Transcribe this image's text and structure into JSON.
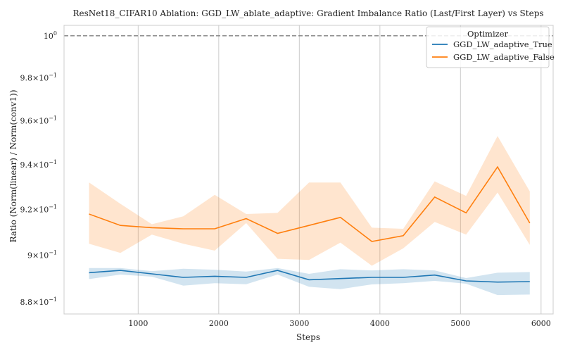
{
  "chart_data": {
    "type": "line",
    "title": "ResNet18_CIFAR10 Ablation: GGD_LW_ablate_adaptive: Gradient Imbalance Ratio (Last/First Layer) vs Steps",
    "xlabel": "Steps",
    "ylabel": "Ratio (Norm(linear) / Norm(conv1))",
    "yscale": "log",
    "xlim": [
      80,
      6150
    ],
    "ylim": [
      0.875,
      1.005
    ],
    "x_ticks": [
      1000,
      2000,
      3000,
      4000,
      5000,
      6000
    ],
    "x_tick_labels": [
      "1000",
      "2000",
      "3000",
      "4000",
      "5000",
      "6000"
    ],
    "y_ticks": [
      {
        "value": 0.88,
        "mantissa": "8.8",
        "base": "10",
        "exp": "−1",
        "minor": true
      },
      {
        "value": 0.9,
        "mantissa": "9",
        "base": "10",
        "exp": "−1",
        "minor": true
      },
      {
        "value": 0.92,
        "mantissa": "9.2",
        "base": "10",
        "exp": "−1",
        "minor": true
      },
      {
        "value": 0.94,
        "mantissa": "9.4",
        "base": "10",
        "exp": "−1",
        "minor": true
      },
      {
        "value": 0.96,
        "mantissa": "9.6",
        "base": "10",
        "exp": "−1",
        "minor": true
      },
      {
        "value": 0.98,
        "mantissa": "9.8",
        "base": "10",
        "exp": "−1",
        "minor": true
      },
      {
        "value": 1.0,
        "mantissa": "",
        "base": "10",
        "exp": "0",
        "minor": false
      }
    ],
    "grid": "x",
    "reference_line": {
      "y": 1.0,
      "style": "dashed",
      "color": "#808080"
    },
    "legend": {
      "title": "Optimizer",
      "placement": "top-right"
    },
    "x": [
      390,
      780,
      1170,
      1560,
      1950,
      2340,
      2730,
      3120,
      3510,
      3900,
      4290,
      4680,
      5070,
      5460,
      5860
    ],
    "series": [
      {
        "name": "GGD_LW_adaptive_True",
        "color": "#1f77b4",
        "values": [
          0.8925,
          0.8935,
          0.892,
          0.8905,
          0.891,
          0.8905,
          0.8935,
          0.8895,
          0.89,
          0.8905,
          0.8905,
          0.8915,
          0.889,
          0.8885,
          0.8887
        ],
        "lower": [
          0.8898,
          0.8917,
          0.8908,
          0.887,
          0.888,
          0.8876,
          0.8917,
          0.8865,
          0.8855,
          0.8875,
          0.888,
          0.889,
          0.8878,
          0.883,
          0.8832
        ],
        "upper": [
          0.8945,
          0.8945,
          0.8932,
          0.8942,
          0.8938,
          0.893,
          0.8945,
          0.892,
          0.894,
          0.8935,
          0.894,
          0.8935,
          0.8902,
          0.8925,
          0.8928
        ]
      },
      {
        "name": "GGD_LW_adaptive_False",
        "color": "#ff7f0e",
        "values": [
          0.918,
          0.913,
          0.912,
          0.9115,
          0.9115,
          0.916,
          0.9095,
          0.913,
          0.9165,
          0.906,
          0.9085,
          0.9255,
          0.9185,
          0.939,
          0.914
        ],
        "lower": [
          0.905,
          0.901,
          0.909,
          0.905,
          0.902,
          0.914,
          0.8985,
          0.898,
          0.9055,
          0.8955,
          0.903,
          0.9145,
          0.909,
          0.9275,
          0.9045
        ],
        "upper": [
          0.932,
          0.9225,
          0.9135,
          0.917,
          0.9265,
          0.918,
          0.9185,
          0.932,
          0.932,
          0.912,
          0.9115,
          0.9325,
          0.926,
          0.953,
          0.928
        ]
      }
    ]
  }
}
